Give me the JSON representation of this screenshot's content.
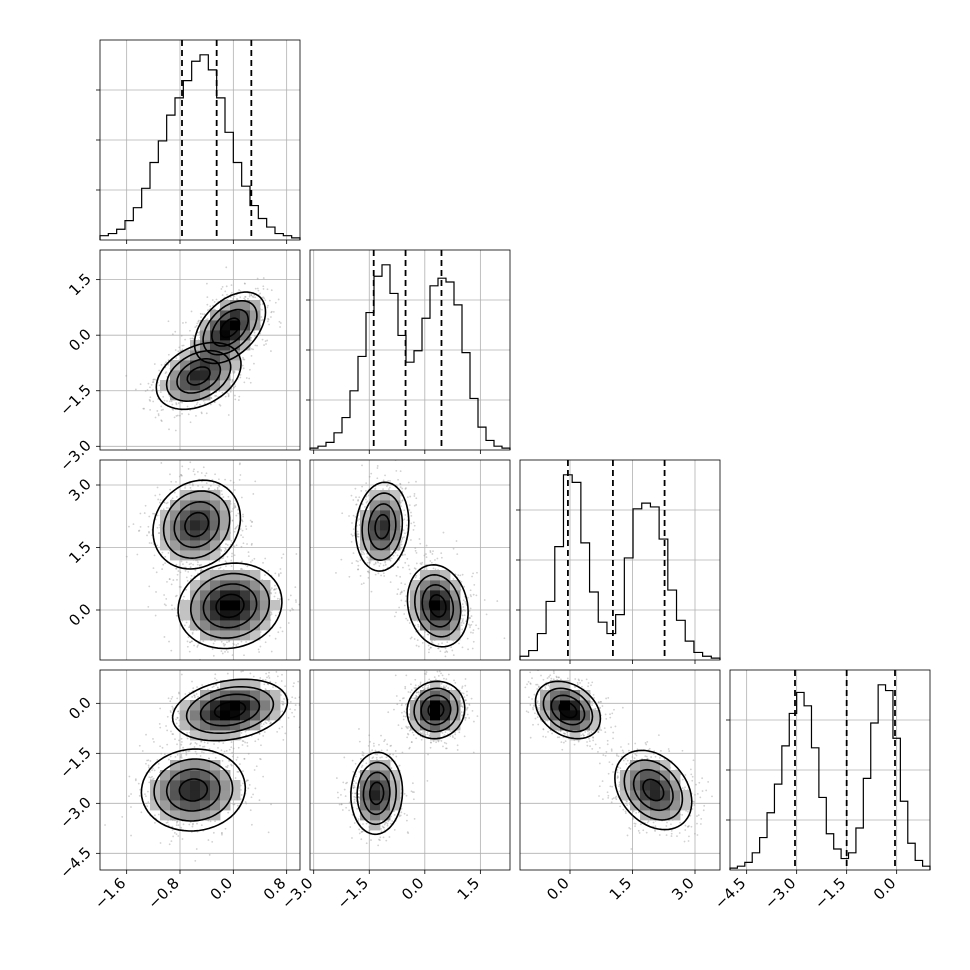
{
  "chart_data": {
    "type": "corner",
    "grid": true,
    "colors": {
      "line": "#000000",
      "grid": "#b0b0b0",
      "density_max": "#000000",
      "density_min": "#ffffff"
    },
    "params": [
      {
        "range": [
          -2.0,
          1.0
        ],
        "ticks": [
          -1.6,
          -0.8,
          0.0,
          0.8
        ],
        "tick_labels": [
          "−1.6",
          "−0.8",
          "0.0",
          "0.8"
        ],
        "quantiles": [
          -0.77,
          -0.25,
          0.27
        ]
      },
      {
        "range": [
          -3.1,
          2.3
        ],
        "ticks": [
          -3.0,
          -1.5,
          0.0,
          1.5
        ],
        "tick_labels": [
          "−3.0",
          "−1.5",
          "0.0",
          "1.5"
        ],
        "quantiles": [
          -1.38,
          -0.52,
          0.45
        ]
      },
      {
        "range": [
          -1.2,
          3.6
        ],
        "ticks": [
          0.0,
          1.5,
          3.0
        ],
        "tick_labels": [
          "0.0",
          "1.5",
          "3.0"
        ],
        "quantiles": [
          -0.05,
          1.03,
          2.27
        ]
      },
      {
        "range": [
          -5.0,
          1.0
        ],
        "ticks": [
          -4.5,
          -3.0,
          -1.5,
          0.0
        ],
        "tick_labels": [
          "−4.5",
          "−3.0",
          "−1.5",
          "0.0"
        ],
        "quantiles": [
          -3.05,
          -1.5,
          -0.05
        ]
      }
    ],
    "histograms": [
      {
        "values": [
          2,
          3,
          5,
          9,
          15,
          24,
          36,
          46,
          58,
          66,
          74,
          83,
          86,
          79,
          66,
          50,
          36,
          25,
          16,
          10,
          6,
          3,
          2,
          1
        ]
      },
      {
        "values": [
          1,
          2,
          4,
          9,
          17,
          31,
          49,
          72,
          91,
          97,
          82,
          60,
          46,
          52,
          69,
          86,
          90,
          88,
          76,
          51,
          27,
          12,
          5,
          2,
          1
        ]
      },
      {
        "values": [
          2,
          5,
          14,
          31,
          60,
          98,
          94,
          62,
          36,
          20,
          14,
          24,
          54,
          80,
          83,
          81,
          64,
          37,
          21,
          10,
          4,
          2,
          1
        ]
      },
      {
        "values": [
          1,
          2,
          4,
          9,
          17,
          30,
          45,
          65,
          82,
          93,
          86,
          64,
          38,
          19,
          11,
          6,
          9,
          22,
          48,
          77,
          97,
          94,
          69,
          36,
          14,
          5,
          2
        ]
      }
    ],
    "joint_components": [
      {
        "i": 1,
        "j": 0,
        "modes": [
          {
            "cx": -0.05,
            "cy": 0.2,
            "sx": 0.26,
            "sy": 0.47,
            "rho": 0.45,
            "w": 0.55
          },
          {
            "cx": -0.52,
            "cy": -1.1,
            "sx": 0.31,
            "sy": 0.44,
            "rho": 0.35,
            "w": 0.45
          }
        ]
      },
      {
        "i": 2,
        "j": 0,
        "modes": [
          {
            "cx": -0.55,
            "cy": 2.05,
            "sx": 0.32,
            "sy": 0.52,
            "rho": 0.15,
            "w": 0.45
          },
          {
            "cx": -0.05,
            "cy": 0.1,
            "sx": 0.38,
            "sy": 0.5,
            "rho": 0.1,
            "w": 0.55
          }
        ]
      },
      {
        "i": 2,
        "j": 1,
        "modes": [
          {
            "cx": -1.15,
            "cy": 2.0,
            "sx": 0.35,
            "sy": 0.52,
            "rho": 0.1,
            "w": 0.45
          },
          {
            "cx": 0.35,
            "cy": 0.1,
            "sx": 0.4,
            "sy": 0.48,
            "rho": -0.15,
            "w": 0.55
          }
        ]
      },
      {
        "i": 3,
        "j": 0,
        "modes": [
          {
            "cx": -0.05,
            "cy": -0.2,
            "sx": 0.42,
            "sy": 0.45,
            "rho": 0.25,
            "w": 0.55
          },
          {
            "cx": -0.6,
            "cy": -2.6,
            "sx": 0.38,
            "sy": 0.6,
            "rho": 0.05,
            "w": 0.45
          }
        ]
      },
      {
        "i": 3,
        "j": 1,
        "modes": [
          {
            "cx": 0.3,
            "cy": -0.2,
            "sx": 0.38,
            "sy": 0.42,
            "rho": 0.05,
            "w": 0.55
          },
          {
            "cx": -1.3,
            "cy": -2.7,
            "sx": 0.34,
            "sy": 0.6,
            "rho": 0.05,
            "w": 0.45
          }
        ]
      },
      {
        "i": 3,
        "j": 2,
        "modes": [
          {
            "cx": -0.05,
            "cy": -0.2,
            "sx": 0.38,
            "sy": 0.42,
            "rho": -0.3,
            "w": 0.55
          },
          {
            "cx": 2.0,
            "cy": -2.6,
            "sx": 0.45,
            "sy": 0.58,
            "rho": -0.3,
            "w": 0.45
          }
        ]
      }
    ]
  }
}
